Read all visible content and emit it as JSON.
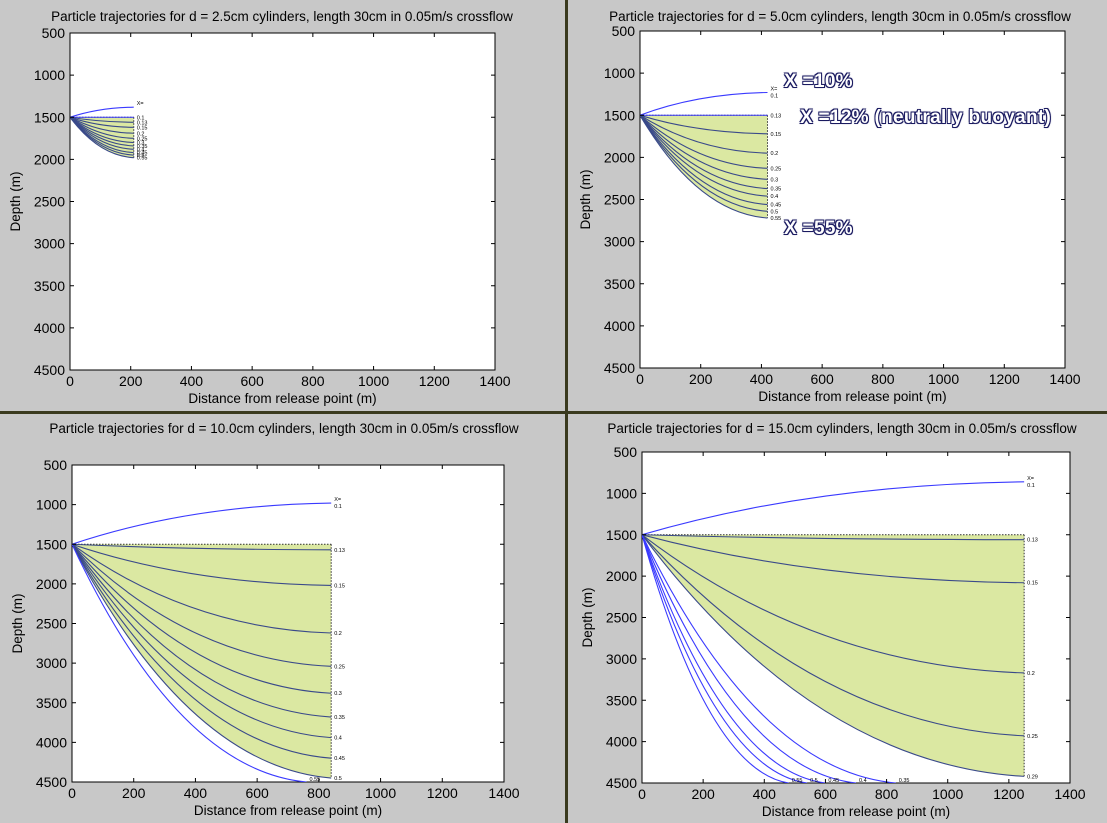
{
  "chart_data": [
    {
      "type": "line",
      "title": "Particle trajectories for d = 2.5cm cylinders, length 30cm in 0.05m/s crossflow",
      "xlabel": "Distance from release point (m)",
      "ylabel": "Depth (m)",
      "xlim": [
        0,
        1400
      ],
      "ylim": [
        4500,
        500
      ],
      "y_reversed": true,
      "xticks": [
        "0",
        "200",
        "400",
        "600",
        "800",
        "1000",
        "1200",
        "1400"
      ],
      "yticks": [
        "500",
        "1000",
        "1500",
        "2000",
        "2500",
        "3000",
        "3500",
        "4000",
        "4500"
      ],
      "release_point": [
        0,
        1500
      ],
      "end_x": 210,
      "shaded_region": true,
      "series": [
        {
          "name": "X=",
          "end": [
            210,
            1380
          ],
          "label": "X="
        },
        {
          "name": "0.1",
          "end": [
            210,
            1500
          ],
          "label": "0.1"
        },
        {
          "name": "0.13",
          "end": [
            210,
            1560
          ],
          "label": "0.13"
        },
        {
          "name": "0.15",
          "end": [
            210,
            1620
          ],
          "label": "0.15"
        },
        {
          "name": "0.2",
          "end": [
            210,
            1690
          ],
          "label": "0.2"
        },
        {
          "name": "0.25",
          "end": [
            210,
            1750
          ],
          "label": "0.25"
        },
        {
          "name": "0.3",
          "end": [
            210,
            1800
          ],
          "label": "0.3"
        },
        {
          "name": "0.35",
          "end": [
            210,
            1840
          ],
          "label": "0.35"
        },
        {
          "name": "0.4",
          "end": [
            210,
            1880
          ],
          "label": "0.4"
        },
        {
          "name": "0.45",
          "end": [
            210,
            1920
          ],
          "label": "0.45"
        },
        {
          "name": "0.5",
          "end": [
            210,
            1950
          ],
          "label": "0.5"
        },
        {
          "name": "0.55",
          "end": [
            210,
            1980
          ],
          "label": "0.55"
        }
      ]
    },
    {
      "type": "line",
      "title": "Particle trajectories for d = 5.0cm cylinders, length 30cm in 0.05m/s crossflow",
      "xlabel": "Distance from release point (m)",
      "ylabel": "Depth (m)",
      "xlim": [
        0,
        1400
      ],
      "ylim": [
        4500,
        500
      ],
      "y_reversed": true,
      "xticks": [
        "0",
        "200",
        "400",
        "600",
        "800",
        "1000",
        "1200",
        "1400"
      ],
      "yticks": [
        "500",
        "1000",
        "1500",
        "2000",
        "2500",
        "3000",
        "3500",
        "4000",
        "4500"
      ],
      "release_point": [
        0,
        1500
      ],
      "end_x": 420,
      "shaded_region": true,
      "series": [
        {
          "name": "X= 0.1",
          "end": [
            420,
            1230
          ],
          "label": "X= 0.1"
        },
        {
          "name": "0.13",
          "end": [
            420,
            1500
          ],
          "label": "0.13"
        },
        {
          "name": "0.15",
          "end": [
            420,
            1720
          ],
          "label": "0.15"
        },
        {
          "name": "0.2",
          "end": [
            420,
            1950
          ],
          "label": "0.2"
        },
        {
          "name": "0.25",
          "end": [
            420,
            2130
          ],
          "label": "0.25"
        },
        {
          "name": "0.3",
          "end": [
            420,
            2260
          ],
          "label": "0.3"
        },
        {
          "name": "0.35",
          "end": [
            420,
            2370
          ],
          "label": "0.35"
        },
        {
          "name": "0.4",
          "end": [
            420,
            2460
          ],
          "label": "0.4"
        },
        {
          "name": "0.45",
          "end": [
            420,
            2560
          ],
          "label": "0.45"
        },
        {
          "name": "0.5",
          "end": [
            420,
            2640
          ],
          "label": "0.5"
        },
        {
          "name": "0.55",
          "end": [
            420,
            2720
          ],
          "label": "0.55"
        }
      ],
      "annotations": [
        {
          "text": "X =10%"
        },
        {
          "text": "X =12% (neutrally buoyant)"
        },
        {
          "text": "X =55%"
        }
      ]
    },
    {
      "type": "line",
      "title": "Particle trajectories for d = 10.0cm cylinders, length 30cm in 0.05m/s crossflow",
      "xlabel": "Distance from release point (m)",
      "ylabel": "Depth (m)",
      "xlim": [
        0,
        1400
      ],
      "ylim": [
        4500,
        500
      ],
      "y_reversed": true,
      "xticks": [
        "0",
        "200",
        "400",
        "600",
        "800",
        "1000",
        "1200",
        "1400"
      ],
      "yticks": [
        "500",
        "1000",
        "1500",
        "2000",
        "2500",
        "3000",
        "3500",
        "4000",
        "4500"
      ],
      "release_point": [
        0,
        1500
      ],
      "end_x": 840,
      "shaded_region": true,
      "series": [
        {
          "name": "X= 0.1",
          "end": [
            840,
            980
          ],
          "label": "X= 0.1"
        },
        {
          "name": "0.13",
          "end": [
            840,
            1570
          ],
          "label": "0.13"
        },
        {
          "name": "0.15",
          "end": [
            840,
            2020
          ],
          "label": "0.15"
        },
        {
          "name": "0.2",
          "end": [
            840,
            2620
          ],
          "label": "0.2"
        },
        {
          "name": "0.25",
          "end": [
            840,
            3040
          ],
          "label": "0.25"
        },
        {
          "name": "0.3",
          "end": [
            840,
            3380
          ],
          "label": "0.3"
        },
        {
          "name": "0.35",
          "end": [
            840,
            3680
          ],
          "label": "0.35"
        },
        {
          "name": "0.4",
          "end": [
            840,
            3940
          ],
          "label": "0.4"
        },
        {
          "name": "0.45",
          "end": [
            840,
            4200
          ],
          "label": "0.45"
        },
        {
          "name": "0.5",
          "end": [
            840,
            4450
          ],
          "label": "0.5"
        },
        {
          "name": "0.55",
          "end": [
            760,
            4500
          ],
          "label": "0.55"
        }
      ]
    },
    {
      "type": "line",
      "title": "Particle trajectories for d = 15.0cm cylinders, length 30cm in 0.05m/s crossflow",
      "xlabel": "Distance from release point (m)",
      "ylabel": "Depth (m)",
      "xlim": [
        0,
        1400
      ],
      "ylim": [
        4500,
        500
      ],
      "y_reversed": true,
      "xticks": [
        "0",
        "200",
        "400",
        "600",
        "800",
        "1000",
        "1200",
        "1400"
      ],
      "yticks": [
        "500",
        "1000",
        "1500",
        "2000",
        "2500",
        "3000",
        "3500",
        "4000",
        "4500"
      ],
      "release_point": [
        0,
        1500
      ],
      "end_x": 1250,
      "shaded_region": true,
      "series": [
        {
          "name": "X= 0.1",
          "end": [
            1250,
            860
          ],
          "label": "X= 0.1"
        },
        {
          "name": "0.13",
          "end": [
            1250,
            1560
          ],
          "label": "0.13"
        },
        {
          "name": "0.15",
          "end": [
            1250,
            2080
          ],
          "label": "0.15"
        },
        {
          "name": "0.2",
          "end": [
            1250,
            3170
          ],
          "label": "0.2"
        },
        {
          "name": "0.25",
          "end": [
            1250,
            3930
          ],
          "label": "0.25"
        },
        {
          "name": "0.29",
          "end": [
            1250,
            4420
          ],
          "label": "0.29"
        },
        {
          "name": "0.35",
          "end": [
            830,
            4500
          ],
          "label": "0.35"
        },
        {
          "name": "0.4",
          "end": [
            700,
            4500
          ],
          "label": "0.4"
        },
        {
          "name": "0.45",
          "end": [
            600,
            4500
          ],
          "label": "0.45"
        },
        {
          "name": "0.5",
          "end": [
            540,
            4500
          ],
          "label": "0.5"
        },
        {
          "name": "0.55",
          "end": [
            480,
            4500
          ],
          "label": "0.55"
        }
      ]
    }
  ],
  "colors": {
    "background": "#c8c8c8",
    "plot_bg": "#ffffff",
    "trajectory": "#3a3aff",
    "shade": "#dbe8a2",
    "divider": "#3a3a1e"
  }
}
